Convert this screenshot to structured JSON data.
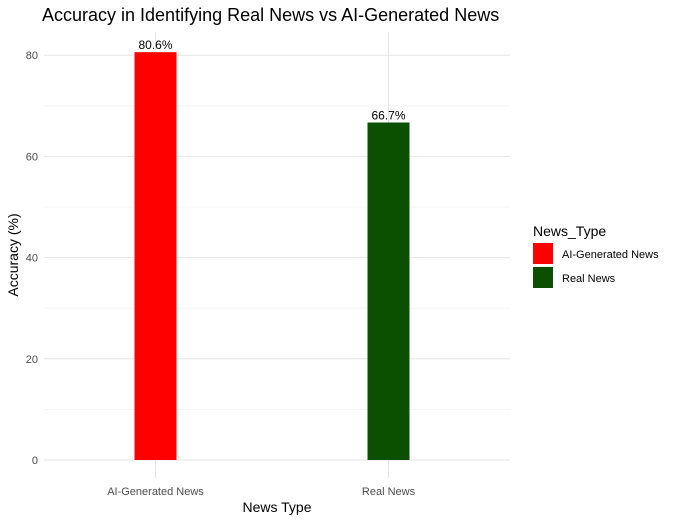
{
  "chart_data": {
    "type": "bar",
    "title": "Accuracy in Identifying Real News vs AI-Generated News",
    "xlabel": "News Type",
    "ylabel": "Accuracy (%)",
    "categories": [
      "AI-Generated News",
      "Real News"
    ],
    "values": [
      80.6,
      66.7
    ],
    "value_labels": [
      "80.6%",
      "66.7%"
    ],
    "colors": [
      "#ff0000",
      "#0a5000"
    ],
    "ylim": [
      0,
      84
    ],
    "y_ticks": [
      0,
      20,
      40,
      60,
      80
    ],
    "y_tick_labels": [
      "0",
      "20",
      "40",
      "60",
      "80"
    ],
    "grid": true,
    "legend": {
      "title": "News_Type",
      "position": "right",
      "entries": [
        {
          "label": "AI-Generated News",
          "color": "#ff0000"
        },
        {
          "label": "Real News",
          "color": "#0a5000"
        }
      ]
    }
  }
}
